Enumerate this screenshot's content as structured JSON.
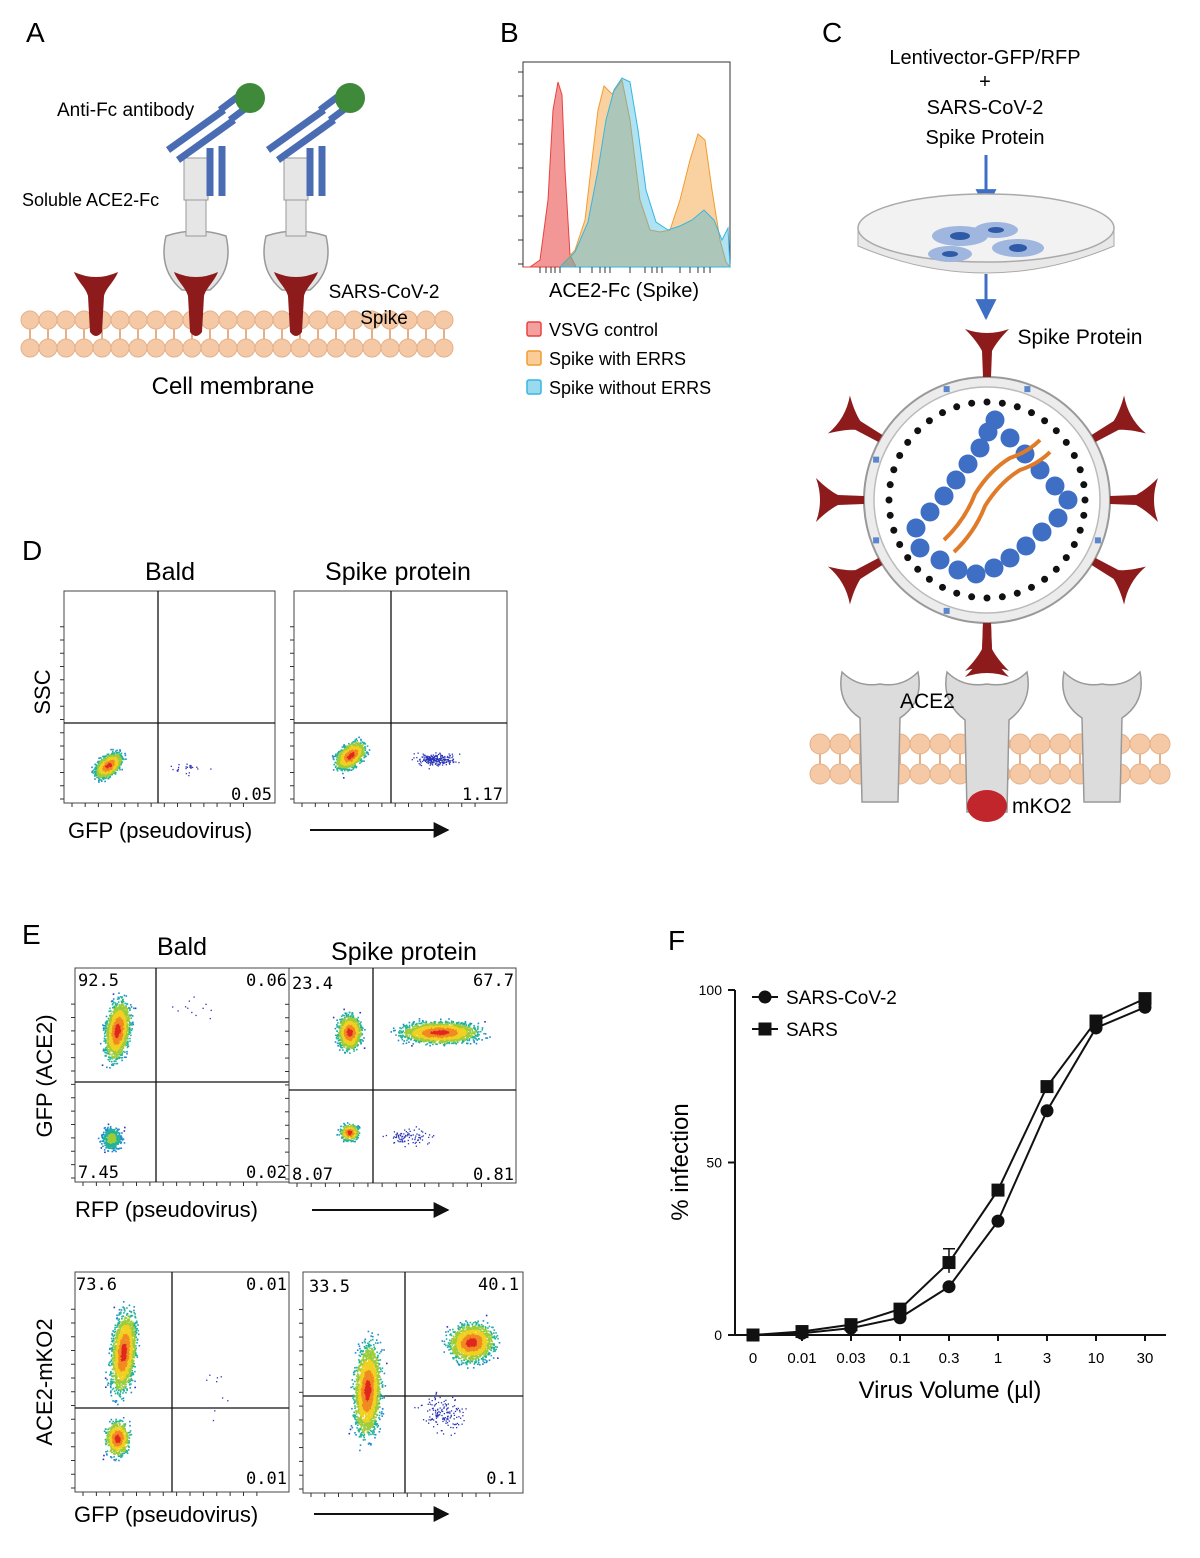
{
  "panels": {
    "A": {
      "letter": "A",
      "antibody_label": "Anti-Fc antibody",
      "ace2fc_label": "Soluble ACE2-Fc",
      "spike_label_1": "SARS-CoV-2",
      "spike_label_2": "Spike",
      "membrane_label": "Cell membrane"
    },
    "B": {
      "letter": "B",
      "xlabel": "ACE2-Fc (Spike)",
      "legend": [
        {
          "label": "VSVG control",
          "color": "#e8423f"
        },
        {
          "label": "Spike with ERRS",
          "color": "#f39b2f"
        },
        {
          "label": "Spike without ERRS",
          "color": "#36b6e0"
        }
      ]
    },
    "C": {
      "letter": "C",
      "vector_line1": "Lentivector-GFP/RFP",
      "plus": "+",
      "vector_line2": "SARS-CoV-2",
      "vector_line3": "Spike Protein",
      "spike_label": "Spike Protein",
      "ace2_label": "ACE2",
      "mko2_label": "mKO2",
      "colors": {
        "spike": "#8e1b1b",
        "nucleocapsid": "#3e6fc4",
        "rna": "#e07b2a",
        "membrane": "#f5c9a5",
        "receptor": "#d8d8d8",
        "mko2": "#c0262c"
      }
    },
    "D": {
      "letter": "D",
      "plot1_title": "Bald",
      "plot2_title": "Spike protein",
      "ylabel": "SSC",
      "xlabel": "GFP (pseudovirus)",
      "plot1_q": "0.05",
      "plot2_q": "1.17"
    },
    "E": {
      "letter": "E",
      "col1_title": "Bald",
      "col2_title": "Spike protein",
      "row1_ylabel": "GFP (ACE2)",
      "row1_xlabel": "RFP (pseudovirus)",
      "row2_ylabel": "ACE2-mKO2",
      "row2_xlabel": "GFP (pseudovirus)",
      "r1p1": {
        "ul": "92.5",
        "ur": "0.06",
        "ll": "7.45",
        "lr": "0.02"
      },
      "r1p2": {
        "ul": "23.4",
        "ur": "67.7",
        "ll": "8.07",
        "lr": "0.81"
      },
      "r2p1": {
        "ul": "73.6",
        "ur": "0.01",
        "ll": "",
        "lr": "0.01"
      },
      "r2p2": {
        "ul": "33.5",
        "ur": "40.1",
        "ll": "",
        "lr": "0.1"
      }
    },
    "F": {
      "letter": "F"
    }
  },
  "chart_data": {
    "type": "line",
    "xlabel": "Virus Volume (µl)",
    "ylabel": "% infection",
    "categories": [
      "0",
      "0.01",
      "0.03",
      "0.1",
      "0.3",
      "1",
      "3",
      "10",
      "30"
    ],
    "ylim": [
      0,
      100
    ],
    "yticks": [
      0,
      50,
      100
    ],
    "legend_position": "top-left",
    "series": [
      {
        "name": "SARS-CoV-2",
        "marker": "circle",
        "values": [
          0,
          0.5,
          2,
          5,
          14,
          33,
          65,
          89,
          95
        ]
      },
      {
        "name": "SARS",
        "marker": "square",
        "values": [
          0,
          1,
          3,
          7.5,
          21,
          42,
          72,
          91,
          97.5
        ]
      }
    ]
  }
}
